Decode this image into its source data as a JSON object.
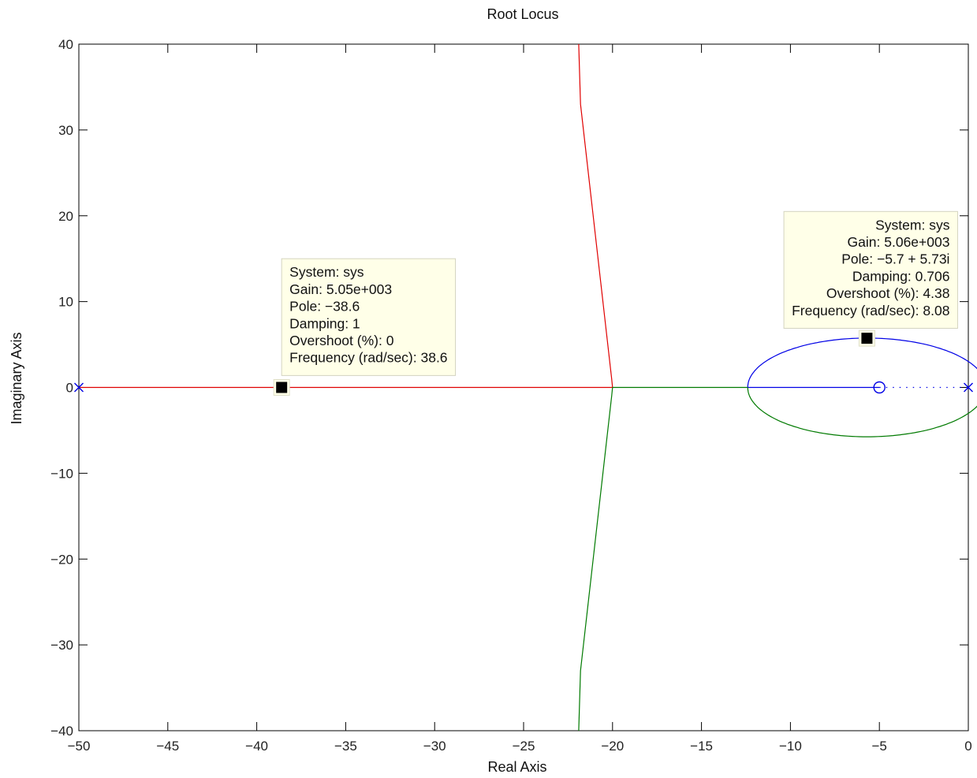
{
  "chart_data": {
    "type": "line",
    "title": "Root Locus",
    "xlabel": "Real Axis",
    "ylabel": "Imaginary Axis",
    "xlim": [
      -50,
      0
    ],
    "ylim": [
      -40,
      40
    ],
    "xticks": [
      -50,
      -45,
      -40,
      -35,
      -30,
      -25,
      -20,
      -15,
      -10,
      -5,
      0
    ],
    "yticks": [
      -40,
      -30,
      -20,
      -10,
      0,
      10,
      20,
      30,
      40
    ],
    "xtick_labels": [
      "−50",
      "−45",
      "−40",
      "−35",
      "−30",
      "−25",
      "−20",
      "−15",
      "−10",
      "−5",
      "0"
    ],
    "ytick_labels": [
      "−40",
      "−30",
      "−20",
      "−10",
      "0",
      "10",
      "20",
      "30",
      "40"
    ],
    "grid": false,
    "colors": {
      "red": "#e00000",
      "green": "#007a00",
      "blue": "#0000e6",
      "tip_bg": "#ffffe8"
    },
    "poles": [
      {
        "x": -50,
        "y": 0
      },
      {
        "x": 0,
        "y": 0
      }
    ],
    "zeros": [
      {
        "x": -5,
        "y": 0
      }
    ],
    "series": [
      {
        "color": "red",
        "points": [
          [
            -50,
            0
          ],
          [
            -20,
            0
          ],
          [
            -20.05,
            1
          ],
          [
            -21.8,
            33
          ],
          [
            -21.9,
            40
          ]
        ]
      },
      {
        "color": "green",
        "points": [
          [
            -20,
            0
          ],
          [
            -12.4,
            0
          ]
        ]
      },
      {
        "color": "green",
        "points": [
          [
            -20,
            0
          ],
          [
            -20.05,
            -1
          ],
          [
            -21.8,
            -33
          ],
          [
            -21.9,
            -40
          ]
        ]
      },
      {
        "color": "blue",
        "points": [
          [
            -5,
            0
          ],
          [
            -12.4,
            0
          ]
        ]
      },
      {
        "color": "blue",
        "type": "arc_upper",
        "cx": -5.7,
        "rx": 6.7,
        "ry": 5.75
      },
      {
        "color": "green",
        "type": "arc_lower",
        "cx": -5.7,
        "rx": 6.7,
        "ry": 5.75
      },
      {
        "color": "blue",
        "style": "dotted",
        "points": [
          [
            -5,
            0
          ],
          [
            0,
            0
          ]
        ]
      }
    ],
    "datatips": [
      {
        "marker": {
          "x": -38.6,
          "y": 0
        },
        "align": "left",
        "anchor": {
          "x": -38.6,
          "y": 15
        },
        "lines": [
          "System: sys",
          "Gain: 5.05e+003",
          "Pole: −38.6",
          "Damping: 1",
          "Overshoot (%): 0",
          "Frequency (rad/sec): 38.6"
        ]
      },
      {
        "marker": {
          "x": -5.7,
          "y": 5.73
        },
        "align": "right",
        "anchor": {
          "x": -0.6,
          "y": 20.5
        },
        "lines": [
          "System: sys",
          "Gain: 5.06e+003",
          "Pole: −5.7 + 5.73i",
          "Damping: 0.706",
          "Overshoot (%): 4.38",
          "Frequency (rad/sec): 8.08"
        ]
      }
    ]
  }
}
